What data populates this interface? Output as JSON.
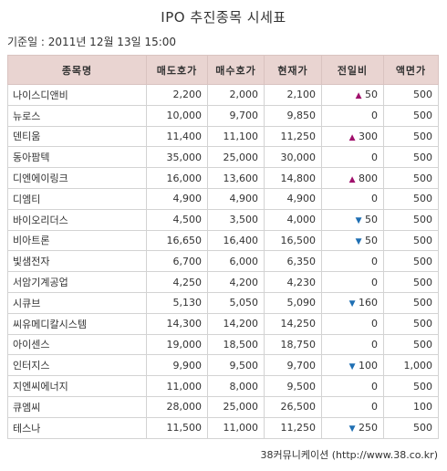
{
  "title": "IPO 추진종목 시세표",
  "date_line": "기준일 : 2011년 12월 13일 15:00",
  "headers": [
    "종목명",
    "매도호가",
    "매수호가",
    "현재가",
    "전일비",
    "액면가"
  ],
  "rows": [
    {
      "name": "나이스디앤비",
      "sell": "2,200",
      "buy": "2,000",
      "price": "2,100",
      "dir": "up",
      "change": "50",
      "par": "500"
    },
    {
      "name": "뉴로스",
      "sell": "10,000",
      "buy": "9,700",
      "price": "9,850",
      "dir": "none",
      "change": "0",
      "par": "500"
    },
    {
      "name": "덴티움",
      "sell": "11,400",
      "buy": "11,100",
      "price": "11,250",
      "dir": "up",
      "change": "300",
      "par": "500"
    },
    {
      "name": "동아팜텍",
      "sell": "35,000",
      "buy": "25,000",
      "price": "30,000",
      "dir": "none",
      "change": "0",
      "par": "500"
    },
    {
      "name": "디엔에이링크",
      "sell": "16,000",
      "buy": "13,600",
      "price": "14,800",
      "dir": "up",
      "change": "800",
      "par": "500"
    },
    {
      "name": "디엠티",
      "sell": "4,900",
      "buy": "4,900",
      "price": "4,900",
      "dir": "none",
      "change": "0",
      "par": "500"
    },
    {
      "name": "바이오리더스",
      "sell": "4,500",
      "buy": "3,500",
      "price": "4,000",
      "dir": "down",
      "change": "50",
      "par": "500"
    },
    {
      "name": "비아트론",
      "sell": "16,650",
      "buy": "16,400",
      "price": "16,500",
      "dir": "down",
      "change": "50",
      "par": "500"
    },
    {
      "name": "빛샘전자",
      "sell": "6,700",
      "buy": "6,000",
      "price": "6,350",
      "dir": "none",
      "change": "0",
      "par": "500"
    },
    {
      "name": "서암기계공업",
      "sell": "4,250",
      "buy": "4,200",
      "price": "4,230",
      "dir": "none",
      "change": "0",
      "par": "500"
    },
    {
      "name": "시큐브",
      "sell": "5,130",
      "buy": "5,050",
      "price": "5,090",
      "dir": "down",
      "change": "160",
      "par": "500"
    },
    {
      "name": "씨유메디칼시스템",
      "sell": "14,300",
      "buy": "14,200",
      "price": "14,250",
      "dir": "none",
      "change": "0",
      "par": "500"
    },
    {
      "name": "아이센스",
      "sell": "19,000",
      "buy": "18,500",
      "price": "18,750",
      "dir": "none",
      "change": "0",
      "par": "500"
    },
    {
      "name": "인터지스",
      "sell": "9,900",
      "buy": "9,500",
      "price": "9,700",
      "dir": "down",
      "change": "100",
      "par": "1,000"
    },
    {
      "name": "지엔씨에너지",
      "sell": "11,000",
      "buy": "8,000",
      "price": "9,500",
      "dir": "none",
      "change": "0",
      "par": "500"
    },
    {
      "name": "큐엠씨",
      "sell": "28,000",
      "buy": "25,000",
      "price": "26,500",
      "dir": "none",
      "change": "0",
      "par": "100"
    },
    {
      "name": "테스나",
      "sell": "11,500",
      "buy": "11,000",
      "price": "11,250",
      "dir": "down",
      "change": "250",
      "par": "500"
    }
  ],
  "footer": "38커뮤니케이션 (http://www.38.co.kr)"
}
